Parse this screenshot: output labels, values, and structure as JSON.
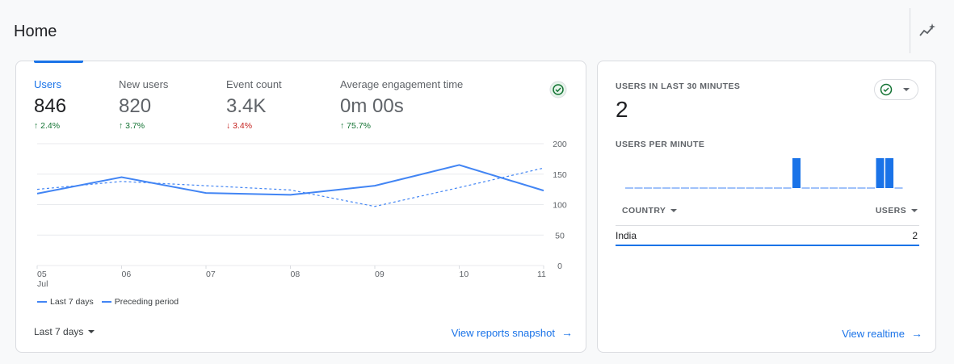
{
  "page": {
    "title": "Home"
  },
  "icons": {
    "insights": "insights-sparkle-icon",
    "check": "check-circle-icon",
    "arrow": "arrow-right-icon"
  },
  "colors": {
    "accent": "#1a73e8",
    "line": "#4285f4",
    "up": "#137333",
    "down": "#c5221f"
  },
  "overview": {
    "metrics": [
      {
        "label": "Users",
        "value": "846",
        "delta": "↑ 2.4%",
        "trend": "up"
      },
      {
        "label": "New users",
        "value": "820",
        "delta": "↑ 3.7%",
        "trend": "up"
      },
      {
        "label": "Event count",
        "value": "3.4K",
        "delta": "↓ 3.4%",
        "trend": "down"
      },
      {
        "label": "Average engagement time",
        "value": "0m 00s",
        "delta": "↑ 75.7%",
        "trend": "up"
      }
    ],
    "legend": {
      "current": "Last 7 days",
      "previous": "Preceding period"
    },
    "date_range": "Last 7 days",
    "link": "View reports snapshot"
  },
  "chart_data": {
    "type": "line",
    "x": [
      "05",
      "06",
      "07",
      "08",
      "09",
      "10",
      "11"
    ],
    "x_sublabel_first": "Jul",
    "y_ticks": [
      0,
      50,
      100,
      150,
      200
    ],
    "ylim": [
      0,
      200
    ],
    "series": [
      {
        "name": "Last 7 days",
        "style": "solid",
        "values": [
          118,
          145,
          119,
          116,
          131,
          165,
          123
        ]
      },
      {
        "name": "Preceding period",
        "style": "dashed",
        "values": [
          125,
          138,
          131,
          124,
          97,
          128,
          160
        ]
      }
    ],
    "grid": true,
    "legend_position": "bottom-left"
  },
  "realtime": {
    "title": "USERS IN LAST 30 MINUTES",
    "value": "2",
    "subtitle": "USERS PER MINUTE",
    "per_minute": [
      0,
      0,
      0,
      0,
      0,
      0,
      0,
      0,
      0,
      0,
      0,
      0,
      0,
      0,
      0,
      0,
      0,
      0,
      1,
      0,
      0,
      0,
      0,
      0,
      0,
      0,
      0,
      1,
      1,
      0
    ],
    "table": {
      "col_country": "COUNTRY",
      "col_users": "USERS",
      "rows": [
        {
          "country": "India",
          "users": "2"
        }
      ]
    },
    "link": "View realtime"
  }
}
